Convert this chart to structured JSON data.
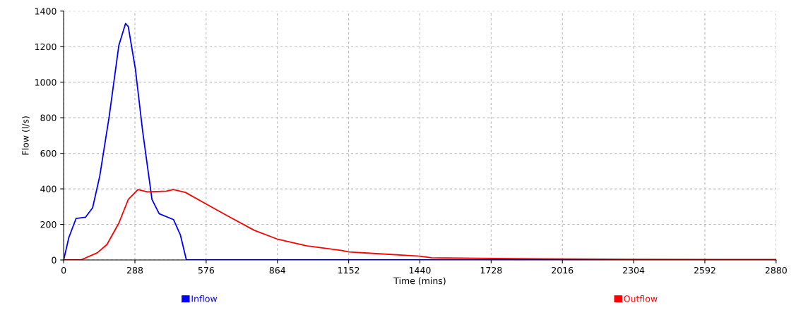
{
  "chart_data": {
    "type": "line",
    "xlabel": "Time (mins)",
    "ylabel": "Flow (l/s)",
    "xlim": [
      0,
      2880
    ],
    "ylim": [
      0,
      1400
    ],
    "xticks": [
      0,
      288,
      576,
      864,
      1152,
      1440,
      1728,
      2016,
      2304,
      2592,
      2880
    ],
    "yticks": [
      0,
      200,
      400,
      600,
      800,
      1000,
      1200,
      1400
    ],
    "grid": true,
    "legend": "bottom",
    "line_style": "solid",
    "marker": "none",
    "series": [
      {
        "name": "Inflow",
        "color": "#0000ff",
        "x": [
          0,
          21,
          50,
          88,
          117,
          146,
          184,
          223,
          250,
          261,
          290,
          319,
          357,
          386,
          444,
          472,
          496,
          1000,
          2360
        ],
        "values": [
          0,
          127,
          233,
          240,
          293,
          473,
          807,
          1207,
          1330,
          1313,
          1073,
          727,
          340,
          260,
          227,
          140,
          0,
          0,
          0
        ]
      },
      {
        "name": "Outflow",
        "color": "#ff0000",
        "x": [
          0,
          69,
          136,
          175,
          223,
          261,
          300,
          338,
          415,
          443,
          492,
          578,
          664,
          770,
          866,
          981,
          1125,
          1153,
          1438,
          1487,
          1743,
          2300,
          2880
        ],
        "values": [
          0,
          0,
          40,
          87,
          207,
          340,
          396,
          383,
          387,
          396,
          380,
          313,
          247,
          167,
          116,
          80,
          53,
          45,
          21,
          12,
          8,
          3,
          2
        ]
      }
    ]
  }
}
